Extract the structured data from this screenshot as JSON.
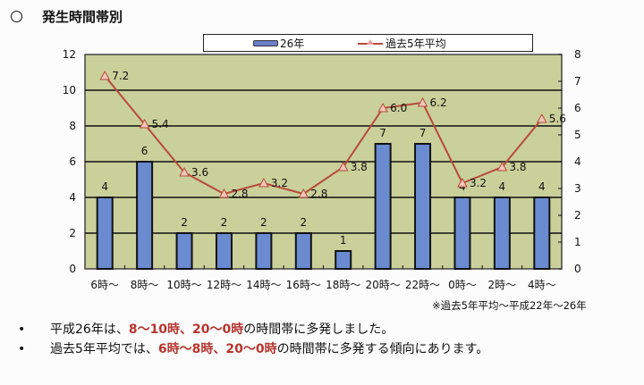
{
  "title": "発生時間帯別",
  "legend": {
    "bar_label": "26年",
    "line_label": "過去5年平均"
  },
  "note": "※過去5年平均～平成22年～26年",
  "bullets": [
    {
      "prefix": "平成26年は、",
      "highlight": "8～10時、20～0時",
      "suffix": " の時間帯に多発しました。"
    },
    {
      "prefix": "過去5年平均では、",
      "highlight": "6時～8時、20～0時",
      "suffix": " の時間帯に多発する傾向にあります。"
    }
  ],
  "colors": {
    "plot_bg": "#c9d09a",
    "bar": "#6b8bd0",
    "line": "#b84a3a",
    "highlight": "#b5352d"
  },
  "chart_data": {
    "type": "bar",
    "title": "発生時間帯別",
    "categories": [
      "6時～",
      "8時～",
      "10時～",
      "12時～",
      "14時～",
      "16時～",
      "18時～",
      "20時～",
      "22時～",
      "0時～",
      "2時～",
      "4時～"
    ],
    "series": [
      {
        "name": "26年",
        "type": "bar",
        "axis": "left",
        "values": [
          4,
          6,
          2,
          2,
          2,
          2,
          1,
          7,
          7,
          4,
          4,
          4
        ]
      },
      {
        "name": "過去5年平均",
        "type": "line",
        "axis": "right",
        "values": [
          7.2,
          5.4,
          3.6,
          2.8,
          3.2,
          2.8,
          3.8,
          6.0,
          6.2,
          3.2,
          3.8,
          5.6
        ]
      }
    ],
    "y_left": {
      "ylim": [
        0,
        12
      ],
      "ticks": [
        0,
        2,
        4,
        6,
        8,
        10,
        12
      ]
    },
    "y_right": {
      "ylim": [
        0,
        8
      ],
      "ticks": [
        0,
        1,
        2,
        3,
        4,
        5,
        6,
        7,
        8
      ]
    },
    "grid": true,
    "legend_position": "top",
    "xlabel": "",
    "ylabel": ""
  }
}
